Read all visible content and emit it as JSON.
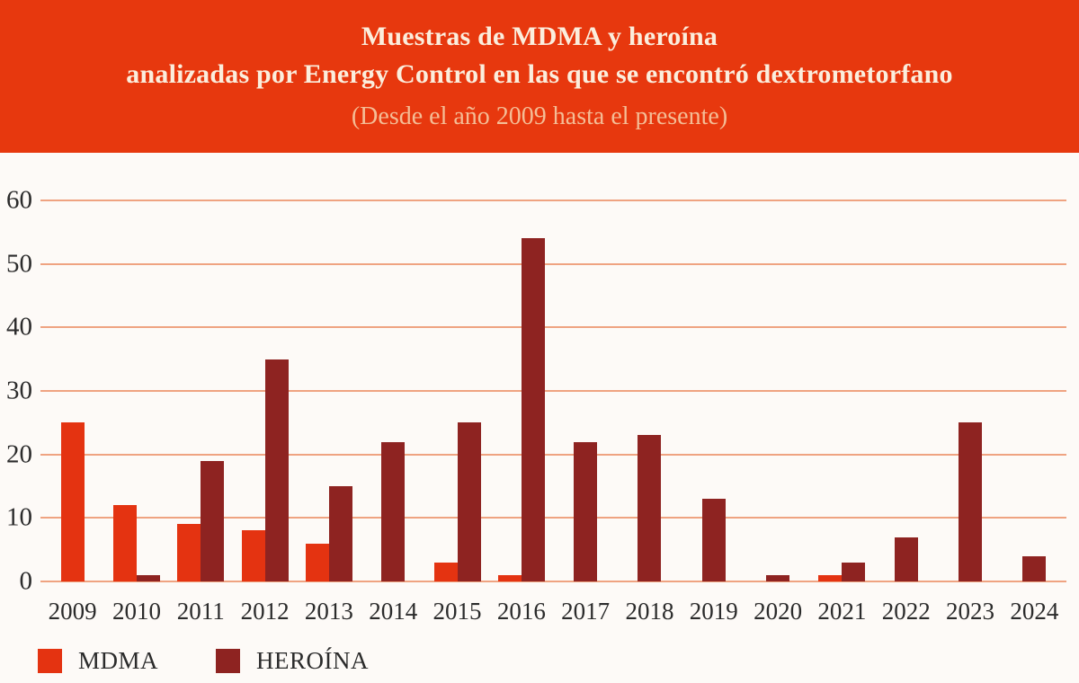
{
  "header": {
    "title_line1": "Muestras de MDMA y heroína",
    "title_line2": "analizadas por Energy Control en las que se encontró dextrometorfano",
    "subtitle": "(Desde el año 2009 hasta el presente)"
  },
  "chart_data": {
    "type": "bar",
    "title": "Muestras de MDMA y heroína analizadas por Energy Control en las que se encontró dextrometorfano",
    "subtitle": "(Desde el año 2009 hasta el presente)",
    "categories": [
      "2009",
      "2010",
      "2011",
      "2012",
      "2013",
      "2014",
      "2015",
      "2016",
      "2017",
      "2018",
      "2019",
      "2020",
      "2021",
      "2022",
      "2023",
      "2024"
    ],
    "series": [
      {
        "name": "MDMA",
        "color": "#e43311",
        "values": [
          25,
          12,
          9,
          8,
          6,
          0,
          3,
          1,
          0,
          0,
          0,
          0,
          1,
          0,
          0,
          0
        ]
      },
      {
        "name": "HEROÍNA",
        "color": "#8e2321",
        "values": [
          0,
          1,
          19,
          35,
          15,
          22,
          25,
          54,
          22,
          23,
          13,
          1,
          3,
          7,
          25,
          4
        ]
      }
    ],
    "xlabel": "",
    "ylabel": "",
    "ylim": [
      0,
      60
    ],
    "yticks": [
      0,
      10,
      20,
      30,
      40,
      50,
      60
    ],
    "grid": true,
    "legend_position": "bottom-left"
  },
  "legend": {
    "items": [
      {
        "label": "MDMA",
        "color": "#e43311"
      },
      {
        "label": "HEROÍNA",
        "color": "#8e2321"
      }
    ]
  },
  "colors": {
    "header_background": "#e7380e",
    "title_text": "#fbeedd",
    "subtitle_text": "#f4bd96",
    "mdma_bar": "#e43311",
    "heroina_bar": "#8e2321",
    "gridline": "#efa381",
    "axis_label": "#2b2b2b",
    "chart_background": "#fdfaf7"
  }
}
